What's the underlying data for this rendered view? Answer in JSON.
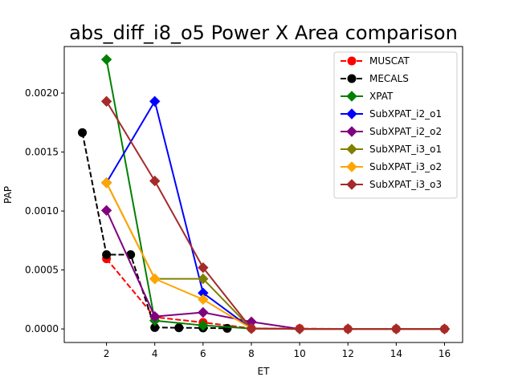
{
  "chart_data": {
    "type": "line",
    "title": "abs_diff_i8_o5 Power X Area comparison",
    "xlabel": "ET",
    "ylabel": "PAP",
    "xlim": [
      0.25,
      16.75
    ],
    "ylim": [
      -0.000115,
      0.002395
    ],
    "xticks": [
      2,
      4,
      6,
      8,
      10,
      12,
      14,
      16
    ],
    "yticks": [
      0.0,
      0.0005,
      0.001,
      0.0015,
      0.002
    ],
    "ytick_labels": [
      "0.0000",
      "0.0005",
      "0.0010",
      "0.0015",
      "0.0020"
    ],
    "grid": false,
    "legend_position": "top-right",
    "series": [
      {
        "name": "MUSCAT",
        "color": "#ff0000",
        "dashed": true,
        "marker": "circle",
        "points": [
          [
            2,
            0.000595
          ],
          [
            4,
            0.0001
          ],
          [
            6,
            5.5e-05
          ],
          [
            8,
            5e-06
          ],
          [
            10,
            3e-06
          ],
          [
            12,
            0.0
          ],
          [
            14,
            0.0
          ],
          [
            16,
            0.0
          ]
        ]
      },
      {
        "name": "MECALS",
        "color": "#000000",
        "dashed": true,
        "marker": "circle",
        "points": [
          [
            1,
            0.001665
          ],
          [
            2,
            0.00063
          ],
          [
            3,
            0.00063
          ],
          [
            4,
            1.2e-05
          ],
          [
            5,
            1e-05
          ],
          [
            6,
            8e-06
          ],
          [
            7,
            5e-06
          ]
        ]
      },
      {
        "name": "XPAT",
        "color": "#008000",
        "dashed": false,
        "marker": "diamond",
        "points": [
          [
            2,
            0.002285
          ],
          [
            4,
            7e-05
          ],
          [
            6,
            3e-05
          ],
          [
            8,
            3e-06
          ],
          [
            10,
            0.0
          ],
          [
            12,
            0.0
          ],
          [
            14,
            0.0
          ],
          [
            16,
            0.0
          ]
        ]
      },
      {
        "name": "SubXPAT_i2_o1",
        "color": "#0000ff",
        "dashed": false,
        "marker": "diamond",
        "points": [
          [
            2,
            0.00124
          ],
          [
            4,
            0.00193
          ],
          [
            6,
            0.000305
          ],
          [
            8,
            3e-06
          ],
          [
            10,
            0.0
          ],
          [
            12,
            0.0
          ],
          [
            14,
            0.0
          ],
          [
            16,
            0.0
          ]
        ]
      },
      {
        "name": "SubXPAT_i2_o2",
        "color": "#800080",
        "dashed": false,
        "marker": "diamond",
        "points": [
          [
            2,
            0.001005
          ],
          [
            4,
            0.000105
          ],
          [
            6,
            0.00014
          ],
          [
            8,
            6e-05
          ],
          [
            10,
            0.0
          ],
          [
            12,
            0.0
          ],
          [
            14,
            0.0
          ],
          [
            16,
            0.0
          ]
        ]
      },
      {
        "name": "SubXPAT_i3_o1",
        "color": "#808000",
        "dashed": false,
        "marker": "diamond",
        "points": [
          [
            2,
            0.00124
          ],
          [
            4,
            0.000425
          ],
          [
            6,
            0.000425
          ],
          [
            8,
            3e-06
          ],
          [
            10,
            0.0
          ],
          [
            12,
            0.0
          ],
          [
            14,
            0.0
          ],
          [
            16,
            0.0
          ]
        ]
      },
      {
        "name": "SubXPAT_i3_o2",
        "color": "#ffa500",
        "dashed": false,
        "marker": "diamond",
        "points": [
          [
            2,
            0.00124
          ],
          [
            4,
            0.000425
          ],
          [
            6,
            0.00025
          ],
          [
            8,
            3e-06
          ],
          [
            10,
            0.0
          ],
          [
            12,
            0.0
          ],
          [
            14,
            0.0
          ],
          [
            16,
            0.0
          ]
        ]
      },
      {
        "name": "SubXPAT_i3_o3",
        "color": "#a52a2a",
        "dashed": false,
        "marker": "diamond",
        "points": [
          [
            2,
            0.00193
          ],
          [
            4,
            0.001255
          ],
          [
            6,
            0.00052
          ],
          [
            8,
            3e-06
          ],
          [
            10,
            0.0
          ],
          [
            12,
            0.0
          ],
          [
            14,
            0.0
          ],
          [
            16,
            0.0
          ]
        ]
      }
    ]
  }
}
